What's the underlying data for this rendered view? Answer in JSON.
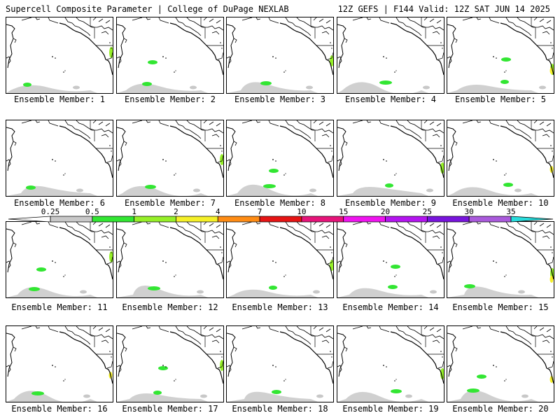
{
  "header": {
    "left_title": "Supercell Composite Parameter | College of DuPage NEXLAB",
    "right_title": "12Z GEFS | F144 Valid: 12Z SAT JUN 14 2025"
  },
  "members": [
    {
      "label": "Ensemble Member: 1"
    },
    {
      "label": "Ensemble Member: 2"
    },
    {
      "label": "Ensemble Member: 3"
    },
    {
      "label": "Ensemble Member: 4"
    },
    {
      "label": "Ensemble Member: 5"
    },
    {
      "label": "Ensemble Member: 6"
    },
    {
      "label": "Ensemble Member: 7"
    },
    {
      "label": "Ensemble Member: 8"
    },
    {
      "label": "Ensemble Member: 9"
    },
    {
      "label": "Ensemble Member: 10"
    },
    {
      "label": "Ensemble Member: 11"
    },
    {
      "label": "Ensemble Member: 12"
    },
    {
      "label": "Ensemble Member: 13"
    },
    {
      "label": "Ensemble Member: 14"
    },
    {
      "label": "Ensemble Member: 15"
    },
    {
      "label": "Ensemble Member: 16"
    },
    {
      "label": "Ensemble Member: 17"
    },
    {
      "label": "Ensemble Member: 18"
    },
    {
      "label": "Ensemble Member: 19"
    },
    {
      "label": "Ensemble Member: 20"
    }
  ],
  "colorbar": {
    "ticks": [
      "0.25",
      "0.5",
      "1",
      "2",
      "4",
      "7",
      "10",
      "15",
      "20",
      "25",
      "30",
      "35"
    ],
    "colors": [
      "#ffffff",
      "#c8c8c8",
      "#32e632",
      "#96f028",
      "#f5f028",
      "#ff8c14",
      "#e61414",
      "#e6147a",
      "#f014f0",
      "#b414f0",
      "#7814dc",
      "#aa5adc",
      "#28dcdc"
    ]
  }
}
